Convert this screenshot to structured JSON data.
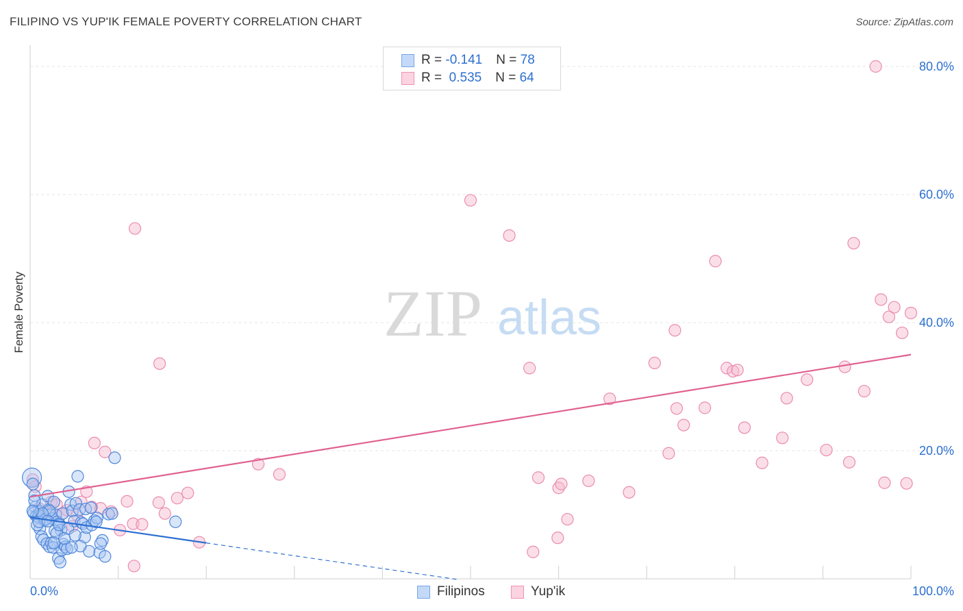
{
  "title": "FILIPINO VS YUP'IK FEMALE POVERTY CORRELATION CHART",
  "source": "Source: ZipAtlas.com",
  "watermark": {
    "zip": "ZIP",
    "atlas": "atlas"
  },
  "colors": {
    "blue": "#2c6fd1",
    "blue_fill": "#aac8f3",
    "pink": "#e0608f",
    "pink_fill": "#f6b8cd",
    "tick_label": "#2c6fd1",
    "grid": "#e6e6e6"
  },
  "legend": {
    "rows": [
      {
        "r_label": "R = ",
        "r_value": "-0.141",
        "n_label": "N = ",
        "n_value": "78"
      },
      {
        "r_label": "R = ",
        "r_value": " 0.535",
        "n_label": "N = ",
        "n_value": "64"
      }
    ]
  },
  "bottom_legend": {
    "filipinos": "Filipinos",
    "yupik": "Yup'ik"
  },
  "chart_data": {
    "type": "scatter",
    "title": "FILIPINO VS YUP'IK FEMALE POVERTY CORRELATION CHART",
    "xlabel": "",
    "ylabel": "Female Poverty",
    "xlim": [
      0,
      100
    ],
    "ylim": [
      0,
      80
    ],
    "x_tick_labels": [
      "0.0%",
      "100.0%"
    ],
    "y_ticks": [
      20,
      40,
      60,
      80
    ],
    "y_tick_labels": [
      "20.0%",
      "40.0%",
      "60.0%",
      "80.0%"
    ],
    "grid": true,
    "series": [
      {
        "name": "Filipinos",
        "color": "#2c6fd1",
        "r": -0.141,
        "n": 78,
        "trend": {
          "x0": 0,
          "y0": 9.6,
          "x1": 20,
          "y1": 5.6,
          "dash_to_x": 48.5
        },
        "points": [
          [
            0.2,
            15.8
          ],
          [
            0.3,
            14.8
          ],
          [
            0.5,
            13.0
          ],
          [
            0.6,
            11.2
          ],
          [
            0.4,
            10.3
          ],
          [
            0.7,
            9.8
          ],
          [
            0.9,
            9.6
          ],
          [
            1.0,
            10.1
          ],
          [
            1.2,
            10.5
          ],
          [
            1.4,
            11.6
          ],
          [
            1.6,
            9.1
          ],
          [
            1.8,
            9.4
          ],
          [
            2.0,
            12.9
          ],
          [
            2.1,
            10.8
          ],
          [
            2.3,
            10.0
          ],
          [
            2.5,
            9.4
          ],
          [
            2.7,
            12.0
          ],
          [
            2.9,
            10.0
          ],
          [
            3.1,
            8.9
          ],
          [
            3.3,
            8.6
          ],
          [
            3.5,
            7.6
          ],
          [
            3.7,
            10.2
          ],
          [
            1.1,
            7.8
          ],
          [
            1.3,
            6.6
          ],
          [
            1.5,
            6.1
          ],
          [
            1.9,
            5.5
          ],
          [
            2.2,
            5.0
          ],
          [
            2.4,
            5.6
          ],
          [
            2.6,
            4.9
          ],
          [
            2.8,
            7.5
          ],
          [
            3.0,
            7.1
          ],
          [
            3.2,
            3.2
          ],
          [
            3.4,
            2.6
          ],
          [
            3.6,
            4.5
          ],
          [
            3.8,
            5.4
          ],
          [
            4.0,
            5.0
          ],
          [
            4.2,
            4.7
          ],
          [
            4.4,
            13.6
          ],
          [
            4.6,
            11.6
          ],
          [
            4.8,
            10.6
          ],
          [
            5.0,
            9.0
          ],
          [
            5.2,
            11.8
          ],
          [
            5.4,
            16.0
          ],
          [
            5.6,
            10.8
          ],
          [
            5.8,
            8.8
          ],
          [
            6.0,
            8.6
          ],
          [
            6.2,
            6.5
          ],
          [
            6.4,
            8.0
          ],
          [
            6.7,
            4.3
          ],
          [
            7.0,
            8.4
          ],
          [
            7.3,
            9.1
          ],
          [
            7.6,
            9.5
          ],
          [
            7.9,
            4.1
          ],
          [
            8.2,
            6.0
          ],
          [
            8.5,
            3.5
          ],
          [
            8.9,
            10.1
          ],
          [
            9.3,
            10.2
          ],
          [
            9.6,
            18.9
          ],
          [
            0.8,
            8.4
          ],
          [
            1.7,
            9.2
          ],
          [
            2.2,
            10.6
          ],
          [
            3.3,
            8.4
          ],
          [
            4.3,
            7.8
          ],
          [
            5.1,
            6.8
          ],
          [
            5.7,
            5.1
          ],
          [
            6.3,
            10.9
          ],
          [
            6.9,
            11.1
          ],
          [
            7.5,
            8.9
          ],
          [
            8.0,
            5.5
          ],
          [
            0.5,
            12.2
          ],
          [
            1.0,
            8.9
          ],
          [
            1.4,
            10.2
          ],
          [
            2.0,
            9.0
          ],
          [
            2.7,
            5.6
          ],
          [
            3.9,
            6.3
          ],
          [
            4.7,
            4.9
          ],
          [
            16.5,
            8.9
          ],
          [
            0.3,
            10.6
          ]
        ]
      },
      {
        "name": "Yup'ik",
        "color": "#e0608f",
        "r": 0.535,
        "n": 64,
        "trend": {
          "x0": 0,
          "y0": 12.8,
          "x1": 100,
          "y1": 35.0
        },
        "points": [
          [
            0.3,
            15.5
          ],
          [
            0.6,
            14.4
          ],
          [
            1.0,
            11.0
          ],
          [
            1.3,
            9.8
          ],
          [
            1.8,
            10.3
          ],
          [
            2.4,
            12.0
          ],
          [
            3.0,
            11.6
          ],
          [
            3.6,
            10.1
          ],
          [
            4.2,
            10.7
          ],
          [
            4.8,
            8.2
          ],
          [
            5.3,
            10.0
          ],
          [
            5.8,
            12.0
          ],
          [
            6.4,
            13.6
          ],
          [
            7.0,
            11.2
          ],
          [
            7.3,
            21.2
          ],
          [
            8.0,
            11.0
          ],
          [
            8.5,
            19.8
          ],
          [
            9.2,
            10.5
          ],
          [
            10.2,
            7.6
          ],
          [
            11.0,
            12.1
          ],
          [
            11.7,
            8.6
          ],
          [
            12.7,
            8.5
          ],
          [
            14.6,
            11.9
          ],
          [
            11.8,
            2.0
          ],
          [
            11.9,
            54.7
          ],
          [
            14.7,
            33.6
          ],
          [
            15.3,
            10.2
          ],
          [
            16.7,
            12.6
          ],
          [
            17.9,
            13.4
          ],
          [
            19.2,
            5.7
          ],
          [
            25.9,
            17.9
          ],
          [
            28.3,
            16.3
          ],
          [
            50.0,
            59.1
          ],
          [
            54.4,
            53.6
          ],
          [
            56.7,
            32.9
          ],
          [
            57.1,
            4.2
          ],
          [
            57.7,
            15.8
          ],
          [
            59.9,
            6.4
          ],
          [
            60.0,
            14.2
          ],
          [
            60.3,
            14.8
          ],
          [
            61.0,
            9.3
          ],
          [
            63.4,
            15.3
          ],
          [
            65.8,
            28.1
          ],
          [
            68.0,
            13.5
          ],
          [
            70.9,
            33.7
          ],
          [
            72.5,
            19.6
          ],
          [
            73.2,
            38.8
          ],
          [
            73.4,
            26.6
          ],
          [
            74.2,
            24.0
          ],
          [
            76.6,
            26.7
          ],
          [
            77.8,
            49.6
          ],
          [
            79.1,
            32.9
          ],
          [
            79.8,
            32.4
          ],
          [
            80.3,
            32.6
          ],
          [
            81.1,
            23.6
          ],
          [
            83.1,
            18.1
          ],
          [
            85.4,
            22.0
          ],
          [
            85.9,
            28.2
          ],
          [
            88.2,
            31.1
          ],
          [
            90.4,
            20.1
          ],
          [
            92.5,
            33.1
          ],
          [
            93.5,
            52.4
          ],
          [
            94.7,
            29.3
          ],
          [
            96.6,
            43.6
          ]
        ],
        "points_extra": [
          [
            97.5,
            40.9
          ],
          [
            98.1,
            42.4
          ],
          [
            99.0,
            38.4
          ],
          [
            99.5,
            14.9
          ],
          [
            100.0,
            41.5
          ],
          [
            97.0,
            15.0
          ],
          [
            96.0,
            80.0
          ],
          [
            93.0,
            18.2
          ]
        ]
      }
    ]
  }
}
